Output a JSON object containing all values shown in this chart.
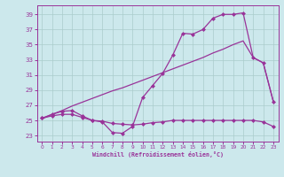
{
  "xlabel": "Windchill (Refroidissement éolien,°C)",
  "bg_color": "#cce8ec",
  "line_color": "#993399",
  "grid_color": "#aacccc",
  "x_ticks": [
    0,
    1,
    2,
    3,
    4,
    5,
    6,
    7,
    8,
    9,
    10,
    11,
    12,
    13,
    14,
    15,
    16,
    17,
    18,
    19,
    20,
    21,
    22,
    23
  ],
  "y_ticks": [
    23,
    25,
    27,
    29,
    31,
    33,
    35,
    37,
    39
  ],
  "xlim": [
    -0.5,
    23.5
  ],
  "ylim": [
    22.2,
    40.2
  ],
  "series1_x": [
    0,
    1,
    2,
    3,
    4,
    5,
    6,
    7,
    8,
    9,
    10,
    11,
    12,
    13,
    14,
    15,
    16,
    17,
    18,
    19,
    20,
    21,
    22,
    23
  ],
  "series1_y": [
    25.3,
    25.8,
    26.2,
    26.3,
    25.6,
    25.0,
    24.8,
    23.4,
    23.3,
    24.2,
    28.0,
    29.6,
    31.2,
    33.6,
    36.5,
    36.4,
    37.0,
    38.5,
    39.0,
    39.0,
    39.2,
    33.3,
    32.6,
    27.5
  ],
  "series2_x": [
    0,
    1,
    2,
    3,
    4,
    5,
    6,
    7,
    8,
    9,
    10,
    11,
    12,
    13,
    14,
    15,
    16,
    17,
    18,
    19,
    20,
    21,
    22,
    23
  ],
  "series2_y": [
    25.2,
    25.8,
    26.3,
    26.9,
    27.4,
    27.9,
    28.4,
    28.9,
    29.3,
    29.8,
    30.3,
    30.8,
    31.3,
    31.8,
    32.3,
    32.8,
    33.3,
    33.9,
    34.4,
    35.0,
    35.5,
    33.3,
    32.6,
    27.5
  ],
  "series3_x": [
    0,
    1,
    2,
    3,
    4,
    5,
    6,
    7,
    8,
    9,
    10,
    11,
    12,
    13,
    14,
    15,
    16,
    17,
    18,
    19,
    20,
    21,
    22,
    23
  ],
  "series3_y": [
    25.3,
    25.6,
    25.8,
    25.8,
    25.4,
    25.0,
    24.9,
    24.6,
    24.5,
    24.4,
    24.5,
    24.7,
    24.8,
    25.0,
    25.0,
    25.0,
    25.0,
    25.0,
    25.0,
    25.0,
    25.0,
    25.0,
    24.8,
    24.2
  ]
}
